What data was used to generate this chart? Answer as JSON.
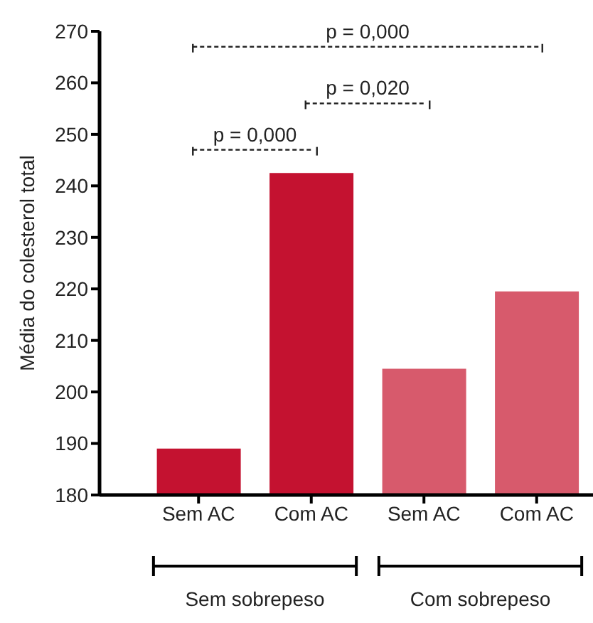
{
  "chart_data": {
    "type": "bar",
    "ylabel": "Média do colesterol total",
    "categories": [
      "Sem AC",
      "Com AC",
      "Sem AC",
      "Com AC"
    ],
    "values": [
      189,
      242.5,
      204.5,
      219.5
    ],
    "colors": [
      "#c41230",
      "#c41230",
      "#d75a6c",
      "#d75a6c"
    ],
    "ylim": [
      180,
      270
    ],
    "yticks": [
      180,
      190,
      200,
      210,
      220,
      230,
      240,
      250,
      260,
      270
    ],
    "annotations": [
      "p = 0,000",
      "p = 0,020",
      "p = 0,000",
      "Sem sobrepeso",
      "Com sobrepeso"
    ]
  }
}
